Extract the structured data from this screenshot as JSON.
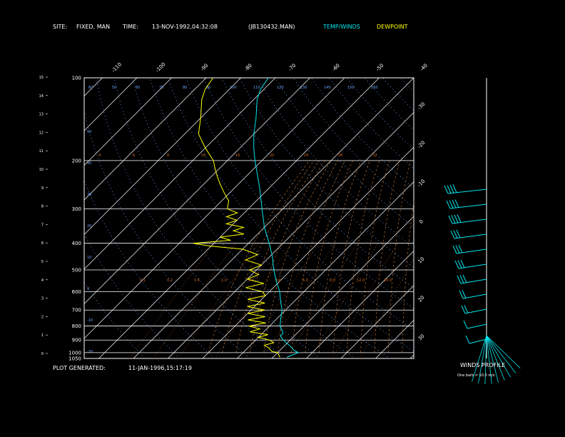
{
  "header": {
    "site_label": "SITE:",
    "site_value": "FIXED, MAN",
    "time_label": "TIME:",
    "time_value": "13-NOV-1992,04:32:08",
    "file": "(JB130432.MAN)",
    "legend_temp": "TEMP/WINDS",
    "legend_dew": "DEWPOINT"
  },
  "footer": {
    "generated_label": "PLOT GENERATED:",
    "generated_value": "11-JAN-1996,15:17:19"
  },
  "winds_profile": {
    "title": "WINDS PROFILE",
    "note": "One barb = 10.0 m/s"
  },
  "colors": {
    "background": "#000000",
    "grid": "#ffffff",
    "temperature": "#00e5ee",
    "dewpoint": "#ffff00",
    "mixing_ratio": "#d2691e",
    "dry_adiabat": "#6fa8ff",
    "moist_adiabat": "#c87a3a",
    "wind": "#00e5ee"
  },
  "chart_data": {
    "type": "line",
    "pressure_levels": [
      "100",
      "200",
      "300",
      "400",
      "500",
      "600",
      "700",
      "800",
      "900",
      "1000",
      "1050"
    ],
    "pressure_values": [
      100,
      200,
      300,
      400,
      500,
      600,
      700,
      800,
      900,
      1000,
      1050
    ],
    "top_temperature_labels": [
      "-110",
      "-100",
      "-90",
      "-80",
      "-70",
      "-60",
      "-50",
      "-40"
    ],
    "right_temperature_labels": [
      "-30",
      "-20",
      "-10",
      "0",
      "10",
      "20",
      "30"
    ],
    "height_km_labels": [
      "0",
      "1",
      "2",
      "3",
      "4",
      "5",
      "6",
      "7",
      "8",
      "9",
      "10",
      "11",
      "12",
      "13",
      "14",
      "15"
    ],
    "dry_adiabat_labels_top": [
      "60",
      "50",
      "60",
      "70",
      "80",
      "90",
      "100",
      "110",
      "120",
      "130",
      "140",
      "150",
      "160"
    ],
    "dry_adiabat_labels_left": [
      "50",
      "40",
      "30",
      "20",
      "10",
      "0",
      "-10",
      "-20"
    ],
    "mixing_ratio_labels": [
      "4",
      "6",
      "8",
      "10",
      "16",
      "20",
      "24",
      "28",
      "32"
    ],
    "moist_labels": [
      "0.1",
      "0.2",
      "0.4",
      "1.0",
      "2.0",
      "3.0",
      "5.0",
      "8.0",
      "12.0",
      "20.0"
    ],
    "series": [
      {
        "name": "TEMP/WINDS",
        "pressure": [
          1040,
          1000,
          980,
          950,
          925,
          900,
          870,
          850,
          800,
          750,
          700,
          650,
          600,
          550,
          500,
          450,
          400,
          350,
          300,
          250,
          200,
          180,
          160,
          140,
          120,
          110,
          100
        ],
        "temperature": [
          4,
          6,
          4,
          2,
          0,
          -2,
          -4,
          -4,
          -7,
          -9,
          -11,
          -14,
          -17,
          -21,
          -25,
          -29,
          -34,
          -40,
          -46,
          -53,
          -62,
          -66,
          -70,
          -74,
          -79,
          -81,
          -82
        ]
      },
      {
        "name": "DEWPOINT",
        "pressure": [
          1040,
          1000,
          990,
          960,
          940,
          920,
          900,
          880,
          860,
          840,
          820,
          800,
          780,
          760,
          740,
          720,
          700,
          680,
          660,
          640,
          620,
          600,
          580,
          560,
          540,
          520,
          500,
          480,
          460,
          440,
          420,
          410,
          400,
          390,
          380,
          370,
          360,
          350,
          340,
          330,
          320,
          310,
          300,
          290,
          280,
          270,
          260,
          250,
          240,
          230,
          220,
          210,
          200,
          180,
          160,
          140,
          120,
          110,
          100
        ],
        "temperature": [
          2,
          0,
          -2,
          -4,
          -6,
          -4,
          -6,
          -10,
          -8,
          -14,
          -12,
          -16,
          -12,
          -18,
          -14,
          -20,
          -16,
          -22,
          -18,
          -24,
          -20,
          -22,
          -28,
          -24,
          -30,
          -28,
          -32,
          -30,
          -36,
          -34,
          -40,
          -50,
          -56,
          -46,
          -50,
          -44,
          -48,
          -46,
          -52,
          -50,
          -54,
          -52,
          -56,
          -57,
          -58,
          -60,
          -62,
          -64,
          -66,
          -68,
          -70,
          -72,
          -74,
          -80,
          -86,
          -90,
          -95,
          -97,
          -98
        ]
      }
    ],
    "winds": [
      {
        "speed": 35,
        "direction": 290
      },
      {
        "speed": 35,
        "direction": 280
      },
      {
        "speed": 40,
        "direction": 285
      },
      {
        "speed": 30,
        "direction": 290
      },
      {
        "speed": 25,
        "direction": 300
      },
      {
        "speed": 30,
        "direction": 300
      },
      {
        "speed": 25,
        "direction": 305
      },
      {
        "speed": 20,
        "direction": 305
      },
      {
        "speed": 15,
        "direction": 310
      },
      {
        "speed": 10,
        "direction": 310
      },
      {
        "speed": 5,
        "direction": 330
      }
    ]
  }
}
